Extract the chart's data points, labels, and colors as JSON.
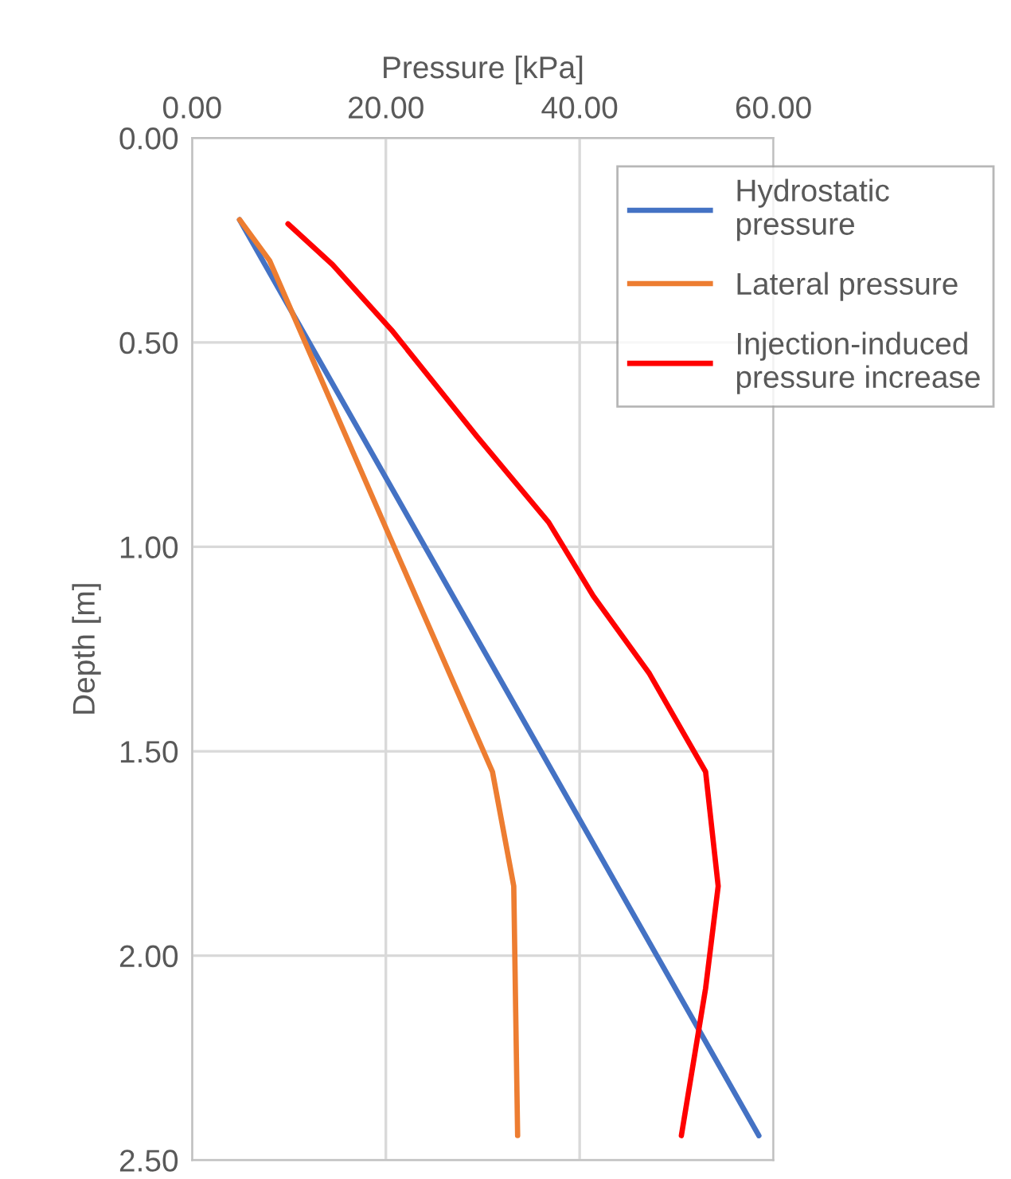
{
  "chart_data": {
    "type": "line",
    "xlabel": "Pressure [kPa]",
    "ylabel": "Depth [m]",
    "xlim": [
      0,
      60
    ],
    "xticks": [
      {
        "value": 0,
        "label": "0.00"
      },
      {
        "value": 20,
        "label": "20.00"
      },
      {
        "value": 40,
        "label": "40.00"
      },
      {
        "value": 60,
        "label": "60.00"
      }
    ],
    "ylim": [
      2.5,
      0
    ],
    "yticks": [
      {
        "value": 0,
        "label": "0.00"
      },
      {
        "value": 0.5,
        "label": "0.50"
      },
      {
        "value": 1.0,
        "label": "1.00"
      },
      {
        "value": 1.5,
        "label": "1.50"
      },
      {
        "value": 2.0,
        "label": "2.00"
      },
      {
        "value": 2.5,
        "label": "2.50"
      }
    ],
    "grid": true,
    "legend": "top right",
    "orientation": "horizontal",
    "series": [
      {
        "name": "Hydrostatic\npressure",
        "color": "#4472c4",
        "x": [
          0.2,
          2.44
        ],
        "values": [
          4.9,
          58.5
        ]
      },
      {
        "name": "Lateral pressure",
        "color": "#ed7d31",
        "x": [
          0.2,
          0.3,
          0.97,
          1.55,
          1.83,
          2.44
        ],
        "values": [
          4.9,
          8.0,
          20.3,
          31.0,
          33.2,
          33.6
        ]
      },
      {
        "name": "Injection-induced\npressure increase",
        "color": "#ff0000",
        "x": [
          0.21,
          0.31,
          0.47,
          0.73,
          0.94,
          1.12,
          1.31,
          1.55,
          1.83,
          2.08,
          2.44
        ],
        "values": [
          9.9,
          14.5,
          20.6,
          29.4,
          36.8,
          41.4,
          47.2,
          53.0,
          54.3,
          53.0,
          50.5
        ]
      }
    ]
  }
}
